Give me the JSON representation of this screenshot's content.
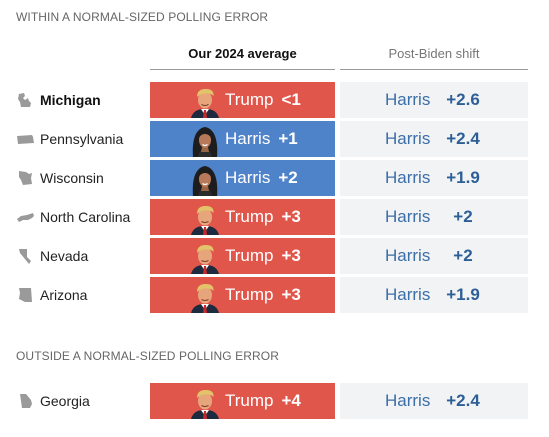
{
  "sections": {
    "within": "WITHIN A NORMAL-SIZED POLLING ERROR",
    "outside": "OUTSIDE A NORMAL-SIZED POLLING ERROR"
  },
  "columns": {
    "average": "Our 2024 average",
    "shift": "Post-Biden shift"
  },
  "colors": {
    "trump": "#e0564b",
    "harris": "#4e82c9",
    "shift_text": "#2d5f96",
    "shift_bg": "#f1f3f5"
  },
  "chart_data": {
    "type": "table",
    "columns": [
      "Our 2024 average",
      "Post-Biden shift"
    ],
    "rows": [
      {
        "state": "Michigan",
        "section": "within",
        "leader": "Trump",
        "margin_label": "<1",
        "margin": 0.5,
        "shift_candidate": "Harris",
        "shift_label": "+2.6",
        "shift": 2.6,
        "icon": "michigan-icon"
      },
      {
        "state": "Pennsylvania",
        "section": "within",
        "leader": "Harris",
        "margin_label": "+1",
        "margin": 1,
        "shift_candidate": "Harris",
        "shift_label": "+2.4",
        "shift": 2.4,
        "icon": "pennsylvania-icon"
      },
      {
        "state": "Wisconsin",
        "section": "within",
        "leader": "Harris",
        "margin_label": "+2",
        "margin": 2,
        "shift_candidate": "Harris",
        "shift_label": "+1.9",
        "shift": 1.9,
        "icon": "wisconsin-icon"
      },
      {
        "state": "North Carolina",
        "section": "within",
        "leader": "Trump",
        "margin_label": "+3",
        "margin": 3,
        "shift_candidate": "Harris",
        "shift_label": "+2",
        "shift": 2,
        "icon": "north-carolina-icon"
      },
      {
        "state": "Nevada",
        "section": "within",
        "leader": "Trump",
        "margin_label": "+3",
        "margin": 3,
        "shift_candidate": "Harris",
        "shift_label": "+2",
        "shift": 2,
        "icon": "nevada-icon"
      },
      {
        "state": "Arizona",
        "section": "within",
        "leader": "Trump",
        "margin_label": "+3",
        "margin": 3,
        "shift_candidate": "Harris",
        "shift_label": "+1.9",
        "shift": 1.9,
        "icon": "arizona-icon"
      },
      {
        "state": "Georgia",
        "section": "outside",
        "leader": "Trump",
        "margin_label": "+4",
        "margin": 4,
        "shift_candidate": "Harris",
        "shift_label": "+2.4",
        "shift": 2.4,
        "icon": "georgia-icon"
      }
    ]
  }
}
